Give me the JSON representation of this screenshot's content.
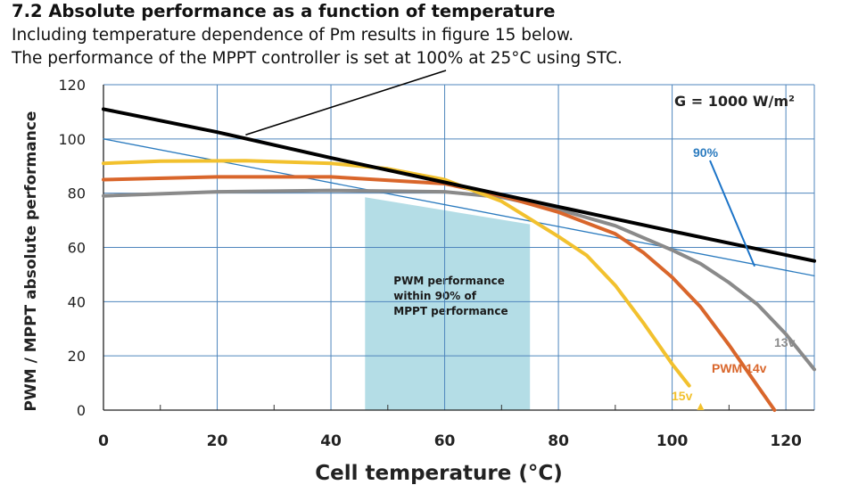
{
  "page": {
    "heading": "7.2 Absolute performance as a function of temperature",
    "line1": "Including temperature dependence of Pm results in figure 15 below.",
    "line2": "The performance of the MPPT controller is set at 100% at 25°C using STC."
  },
  "chart_data": {
    "type": "line",
    "xlabel": "Cell temperature (°C)",
    "ylabel": "PWM / MPPT absolute performance",
    "xlim": [
      0,
      125
    ],
    "ylim": [
      0,
      120
    ],
    "xticks": [
      "0",
      "20",
      "40",
      "60",
      "80",
      "100",
      "120"
    ],
    "yticks": [
      "0",
      "20",
      "40",
      "60",
      "80",
      "100",
      "120"
    ],
    "grid": true,
    "irradiance_label": "G = 1000 W/m²",
    "series": [
      {
        "key": "mppt",
        "color": "#000000",
        "width": 4,
        "x": [
          0,
          20,
          40,
          60,
          80,
          100,
          125
        ],
        "y": [
          111,
          102.5,
          93,
          84,
          75,
          66,
          55
        ]
      },
      {
        "key": "90pct",
        "name": "90%",
        "color": "#2b7bbf",
        "width": 1.3,
        "x": [
          0,
          125
        ],
        "y": [
          100,
          49.5
        ]
      },
      {
        "key": "pwm15",
        "name": "15v",
        "color": "#f2c12e",
        "width": 4,
        "x": [
          0,
          10,
          25,
          40,
          50,
          60,
          70,
          80,
          85,
          90,
          95,
          100,
          103
        ],
        "y": [
          91,
          91.8,
          92,
          91,
          89,
          85,
          77,
          64,
          57,
          46,
          32,
          17,
          9
        ]
      },
      {
        "key": "pwm14",
        "name": "PWM 14v",
        "color": "#d9662b",
        "width": 4,
        "x": [
          0,
          20,
          40,
          60,
          70,
          80,
          90,
          95,
          100,
          105,
          110,
          115,
          118
        ],
        "y": [
          85,
          86,
          86,
          83.5,
          79,
          73,
          65,
          58,
          49,
          38,
          24,
          9,
          0
        ]
      },
      {
        "key": "pwm13",
        "name": "13v",
        "color": "#8a8a8a",
        "width": 4,
        "x": [
          0,
          20,
          40,
          60,
          70,
          80,
          90,
          100,
          105,
          110,
          115,
          120,
          125
        ],
        "y": [
          79,
          80.5,
          81,
          80.5,
          78.5,
          74,
          68,
          59,
          54,
          47,
          39,
          28,
          15
        ]
      }
    ],
    "labels": {
      "pct90": "90%",
      "pwm14": "PWM 14v",
      "v13": "13v",
      "v15": "15v"
    },
    "region": {
      "x_start": 46,
      "x_end": 75,
      "y_top_start": 78.5,
      "y_top_end": 68.5,
      "color": "#b4dde6",
      "text": [
        "PWM performance",
        "within 90% of",
        "MPPT performance"
      ]
    }
  }
}
